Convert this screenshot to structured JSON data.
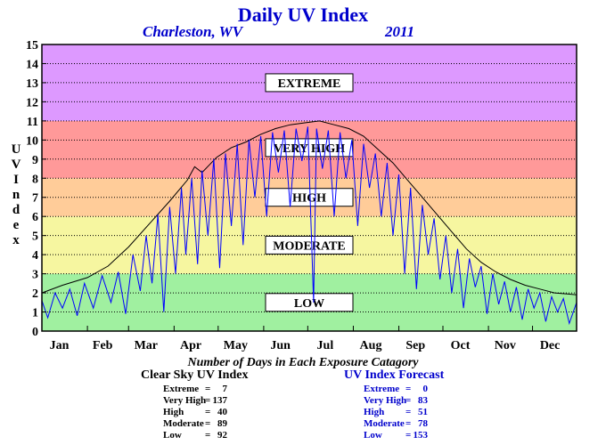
{
  "chart_data": {
    "type": "line",
    "title": "Daily UV Index",
    "location": "Charleston, WV",
    "year": "2011",
    "ylabel": "UV Index",
    "ylim": [
      0,
      15
    ],
    "yticks": [
      "0",
      "1",
      "2",
      "3",
      "4",
      "5",
      "6",
      "7",
      "8",
      "9",
      "10",
      "11",
      "12",
      "13",
      "14",
      "15"
    ],
    "months": [
      "Jan",
      "Feb",
      "Mar",
      "Apr",
      "May",
      "Jun",
      "Jul",
      "Aug",
      "Sep",
      "Oct",
      "Nov",
      "Dec"
    ],
    "grid": true,
    "bands": [
      {
        "label": "LOW",
        "min": 0,
        "max": 3,
        "color": "#a0f0a0"
      },
      {
        "label": "MODERATE",
        "min": 3,
        "max": 6,
        "color": "#f6f6a0"
      },
      {
        "label": "HIGH",
        "min": 6,
        "max": 8,
        "color": "#ffcc99"
      },
      {
        "label": "VERY HIGH",
        "min": 8,
        "max": 11,
        "color": "#ff9999"
      },
      {
        "label": "EXTREME",
        "min": 11,
        "max": 15,
        "color": "#dd99ff"
      }
    ],
    "band_label_values": {
      "EXTREME": 13,
      "VERY HIGH": 9.6,
      "HIGH": 7.0,
      "MODERATE": 4.5,
      "LOW": 1.5
    },
    "series": [
      {
        "key": "clear_sky",
        "color": "#000000",
        "points": [
          [
            1,
            2.0
          ],
          [
            15,
            2.4
          ],
          [
            32,
            2.8
          ],
          [
            46,
            3.4
          ],
          [
            60,
            4.4
          ],
          [
            74,
            5.6
          ],
          [
            88,
            6.8
          ],
          [
            100,
            7.9
          ],
          [
            105,
            8.6
          ],
          [
            110,
            8.3
          ],
          [
            120,
            9.1
          ],
          [
            130,
            9.6
          ],
          [
            140,
            9.9
          ],
          [
            150,
            10.3
          ],
          [
            160,
            10.6
          ],
          [
            170,
            10.8
          ],
          [
            180,
            10.9
          ],
          [
            190,
            11.0
          ],
          [
            200,
            10.8
          ],
          [
            210,
            10.6
          ],
          [
            220,
            10.2
          ],
          [
            230,
            9.5
          ],
          [
            240,
            8.8
          ],
          [
            250,
            7.9
          ],
          [
            260,
            7.0
          ],
          [
            270,
            6.1
          ],
          [
            280,
            5.2
          ],
          [
            290,
            4.3
          ],
          [
            300,
            3.6
          ],
          [
            310,
            3.1
          ],
          [
            320,
            2.7
          ],
          [
            330,
            2.4
          ],
          [
            340,
            2.2
          ],
          [
            350,
            2.0
          ],
          [
            365,
            1.9
          ]
        ]
      },
      {
        "key": "forecast",
        "color": "#0000ff",
        "points": [
          [
            1,
            1.6
          ],
          [
            5,
            0.7
          ],
          [
            10,
            2.0
          ],
          [
            15,
            1.2
          ],
          [
            20,
            2.2
          ],
          [
            25,
            0.8
          ],
          [
            30,
            2.5
          ],
          [
            36,
            1.2
          ],
          [
            42,
            2.9
          ],
          [
            48,
            1.5
          ],
          [
            53,
            3.1
          ],
          [
            58,
            0.9
          ],
          [
            63,
            4.0
          ],
          [
            68,
            2.1
          ],
          [
            72,
            5.0
          ],
          [
            76,
            2.5
          ],
          [
            80,
            6.1
          ],
          [
            84,
            1.0
          ],
          [
            88,
            6.5
          ],
          [
            92,
            3.0
          ],
          [
            96,
            7.5
          ],
          [
            99,
            4.0
          ],
          [
            103,
            8.0
          ],
          [
            107,
            3.5
          ],
          [
            110,
            8.4
          ],
          [
            114,
            5.0
          ],
          [
            118,
            9.0
          ],
          [
            122,
            3.3
          ],
          [
            126,
            9.3
          ],
          [
            130,
            5.5
          ],
          [
            134,
            9.8
          ],
          [
            138,
            4.5
          ],
          [
            142,
            10.0
          ],
          [
            146,
            7.0
          ],
          [
            150,
            10.2
          ],
          [
            154,
            6.0
          ],
          [
            158,
            10.4
          ],
          [
            162,
            8.3
          ],
          [
            166,
            10.5
          ],
          [
            170,
            6.5
          ],
          [
            174,
            10.6
          ],
          [
            178,
            8.9
          ],
          [
            182,
            10.7
          ],
          [
            186,
            1.5
          ],
          [
            188,
            10.6
          ],
          [
            192,
            8.5
          ],
          [
            196,
            10.5
          ],
          [
            200,
            6.0
          ],
          [
            204,
            10.4
          ],
          [
            208,
            8.0
          ],
          [
            212,
            10.0
          ],
          [
            216,
            5.5
          ],
          [
            220,
            9.8
          ],
          [
            224,
            7.5
          ],
          [
            228,
            9.3
          ],
          [
            232,
            6.0
          ],
          [
            236,
            8.8
          ],
          [
            240,
            5.0
          ],
          [
            244,
            8.2
          ],
          [
            248,
            3.0
          ],
          [
            252,
            7.5
          ],
          [
            256,
            2.2
          ],
          [
            260,
            6.6
          ],
          [
            264,
            4.0
          ],
          [
            268,
            5.9
          ],
          [
            272,
            2.7
          ],
          [
            276,
            5.0
          ],
          [
            280,
            2.0
          ],
          [
            284,
            4.3
          ],
          [
            288,
            1.2
          ],
          [
            292,
            3.8
          ],
          [
            296,
            2.3
          ],
          [
            300,
            3.4
          ],
          [
            304,
            0.9
          ],
          [
            308,
            3.0
          ],
          [
            312,
            1.4
          ],
          [
            316,
            2.6
          ],
          [
            320,
            1.0
          ],
          [
            324,
            2.3
          ],
          [
            328,
            0.6
          ],
          [
            332,
            2.2
          ],
          [
            336,
            1.2
          ],
          [
            340,
            2.0
          ],
          [
            344,
            0.5
          ],
          [
            348,
            1.8
          ],
          [
            352,
            1.0
          ],
          [
            356,
            1.7
          ],
          [
            360,
            0.4
          ],
          [
            365,
            1.5
          ]
        ]
      }
    ]
  },
  "stats": {
    "title": "Number of Days in Each Exposure Catagory",
    "clear_sky": {
      "heading": "Clear Sky UV Index",
      "rows": [
        {
          "label": "Extreme",
          "value": "7"
        },
        {
          "label": "Very High",
          "value": "137"
        },
        {
          "label": "High",
          "value": "40"
        },
        {
          "label": "Moderate",
          "value": "89"
        },
        {
          "label": "Low",
          "value": "92"
        }
      ]
    },
    "forecast": {
      "heading": "UV Index Forecast",
      "rows": [
        {
          "label": "Extreme",
          "value": "0"
        },
        {
          "label": "Very High",
          "value": "83"
        },
        {
          "label": "High",
          "value": "51"
        },
        {
          "label": "Moderate",
          "value": "78"
        },
        {
          "label": "Low",
          "value": "153"
        }
      ]
    }
  }
}
